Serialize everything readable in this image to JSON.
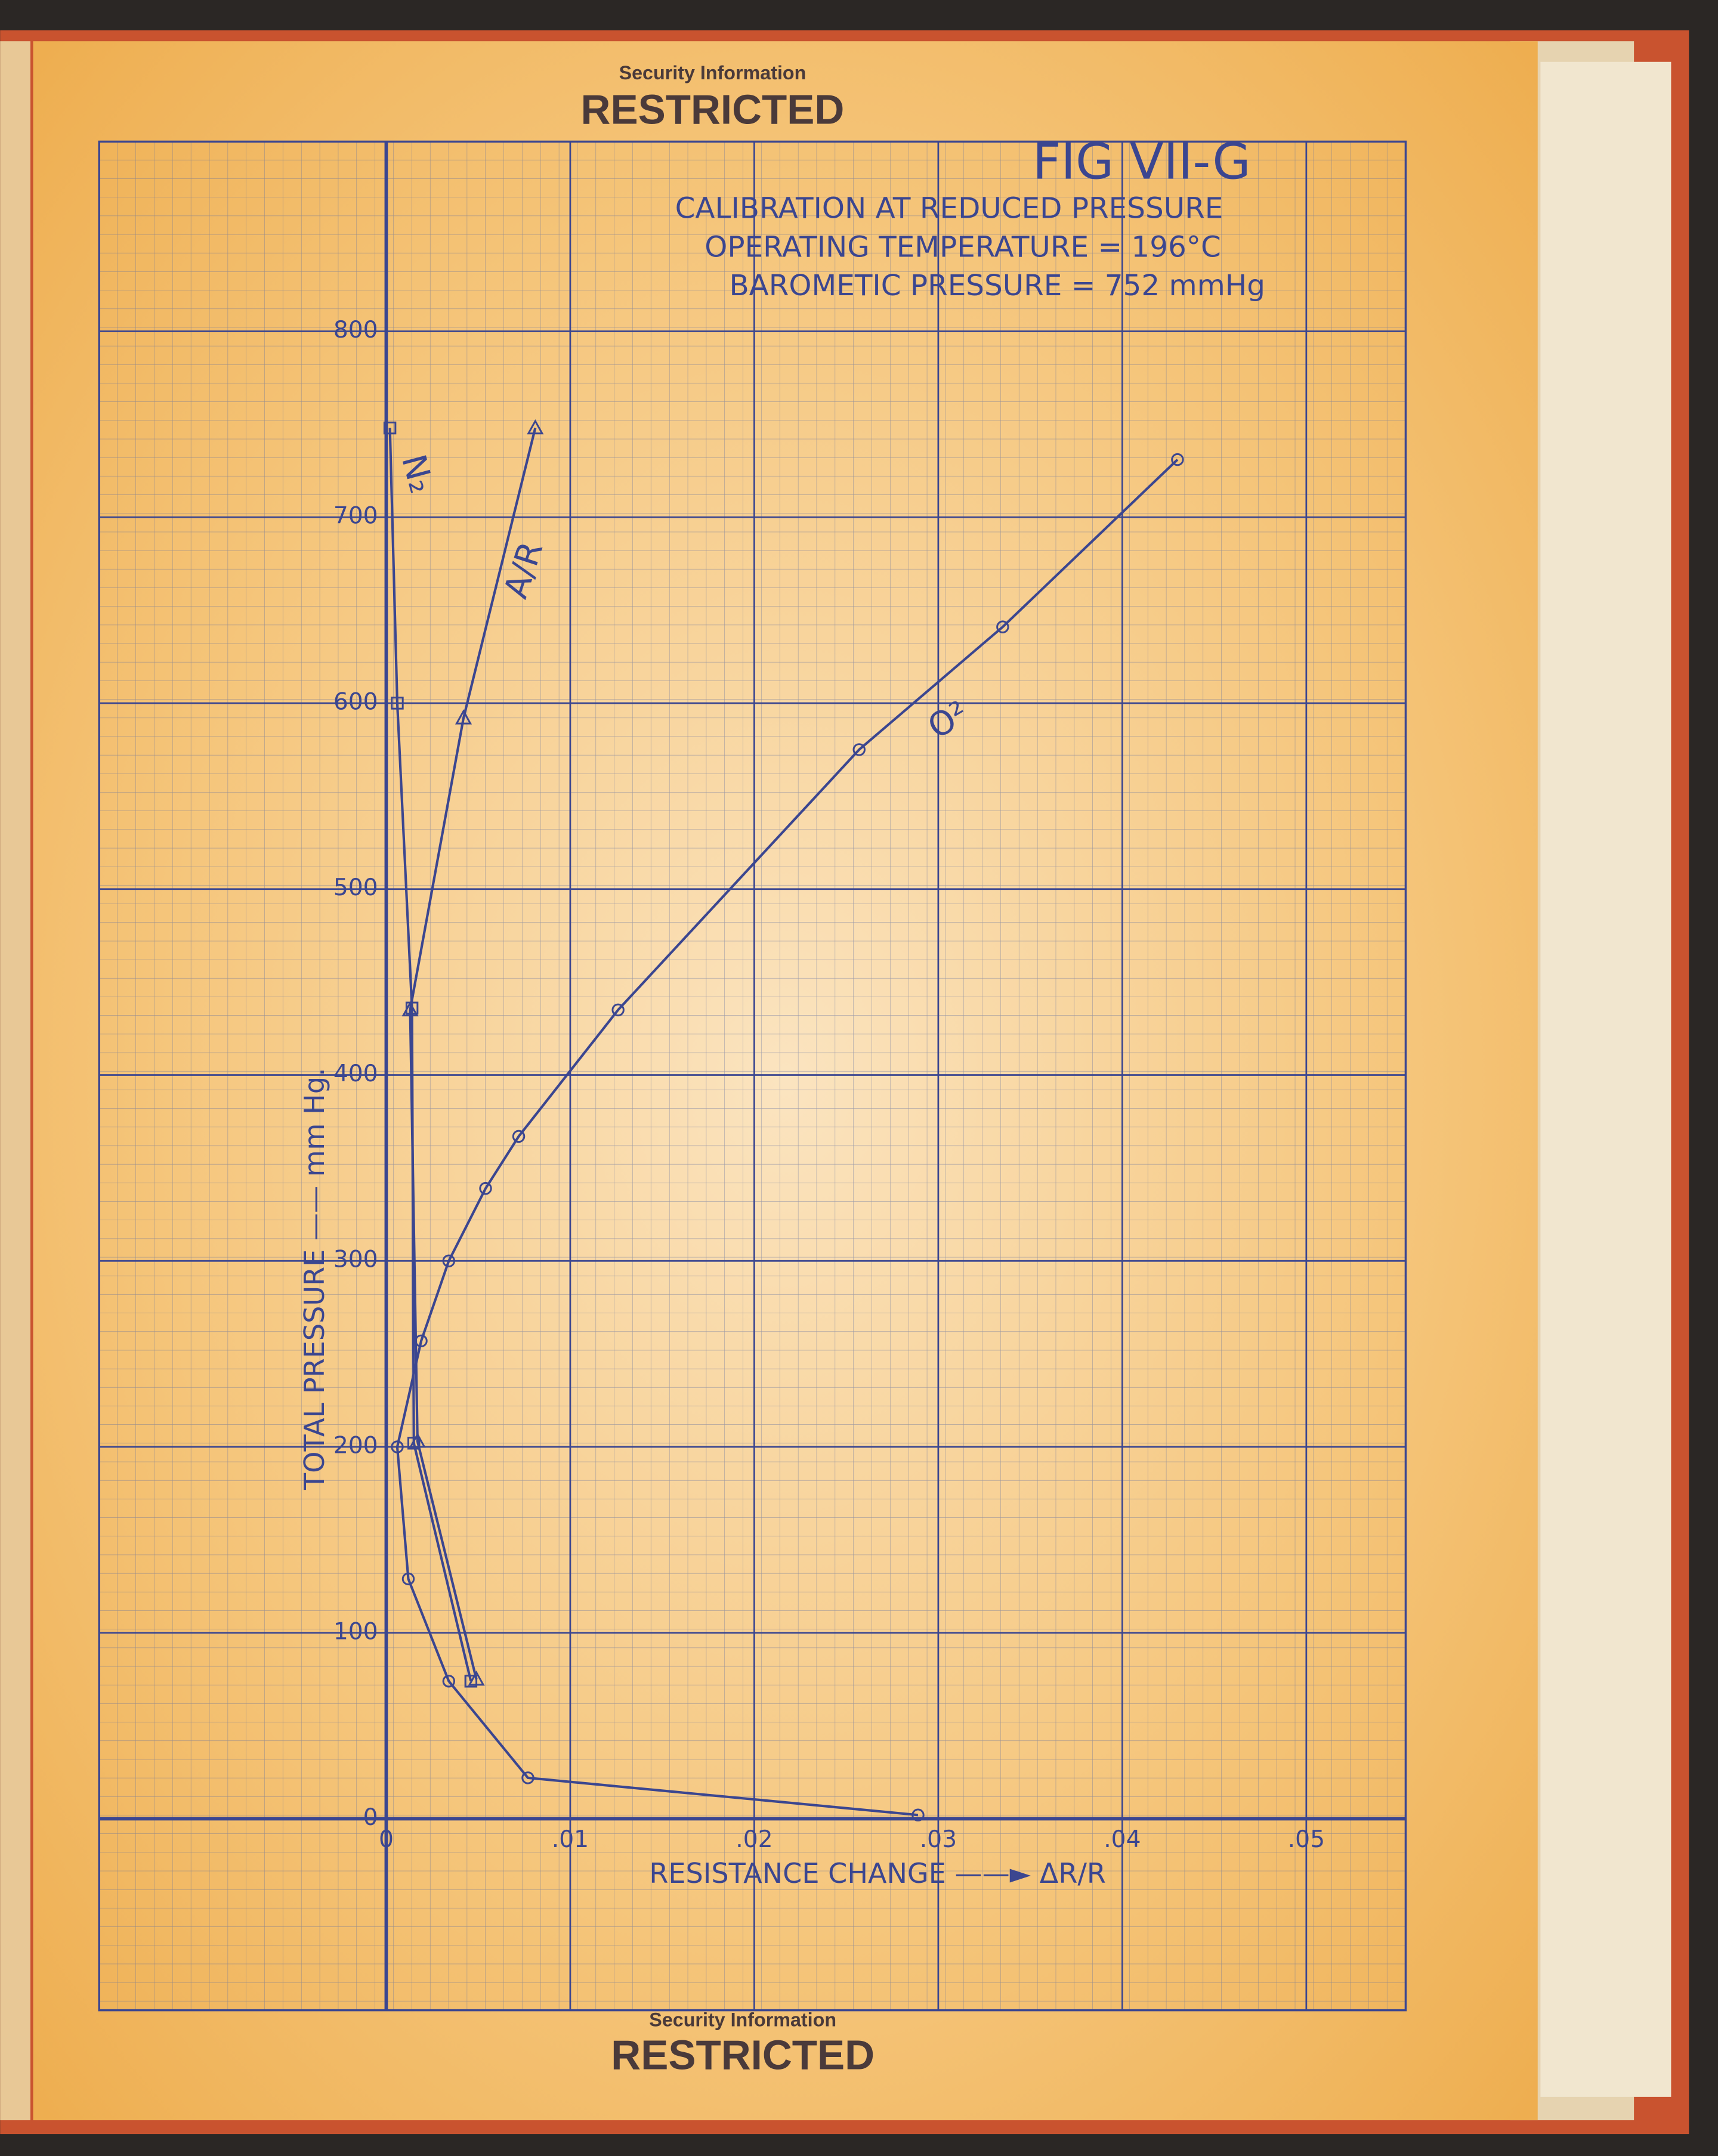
{
  "header": {
    "stamp_top_small": "Security Information",
    "stamp_top": "RESTRICTED"
  },
  "footer": {
    "stamp_bottom_small": "Security Information",
    "stamp_bottom": "RESTRICTED"
  },
  "chart_data": {
    "type": "line",
    "title": "FIG VII-G",
    "subtitle": [
      "CALIBRATION AT REDUCED PRESSURE",
      "OPERATING TEMPERATURE = 196°C",
      "BAROMETIC PRESSURE = 752 mmHg"
    ],
    "x_label": "RESISTANCE CHANGE ——► ΔR/R",
    "y_label": "TOTAL PRESSURE —— mm Hg.",
    "xlim": [
      -0.0156,
      0.0554
    ],
    "ylim": [
      -103,
      902
    ],
    "xticks": [
      0,
      {
        "value": 0.01,
        "label": ".01"
      },
      {
        "value": 0.02,
        "label": ".02"
      },
      {
        "value": 0.03,
        "label": ".03"
      },
      {
        "value": 0.04,
        "label": ".04"
      },
      {
        "value": 0.05,
        "label": ".05"
      }
    ],
    "yticks": [
      0,
      100,
      200,
      300,
      400,
      500,
      600,
      700,
      800
    ],
    "grid": true,
    "series": [
      {
        "name": "O²",
        "color": "#3b4690",
        "marker": "circle",
        "x": [
          0.0289,
          0.0077,
          0.0034,
          0.0012,
          0.0006,
          0.0019,
          0.0034,
          0.0054,
          0.0072,
          0.0126,
          0.0257,
          0.0335,
          0.043
        ],
        "values": [
          2,
          22,
          74,
          129,
          200,
          257,
          300,
          339,
          367,
          435,
          575,
          641,
          731
        ]
      },
      {
        "name": "A/R",
        "color": "#3b4690",
        "marker": "triangle",
        "x": [
          0.0049,
          0.0017,
          0.0013,
          0.0042,
          0.0081
        ],
        "values": [
          75,
          203,
          435,
          592,
          748
        ]
      },
      {
        "name": "N₂",
        "color": "#3b4690",
        "marker": "square",
        "x": [
          0.0046,
          0.0015,
          0.0014,
          0.0006,
          0.0002
        ],
        "values": [
          74,
          202,
          436,
          600,
          748
        ]
      }
    ]
  }
}
